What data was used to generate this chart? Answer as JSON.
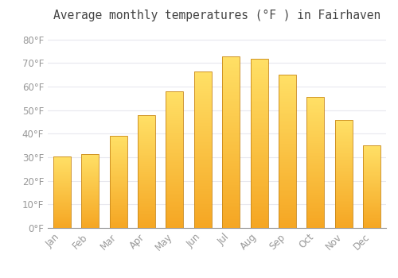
{
  "title": "Average monthly temperatures (°F ) in Fairhaven",
  "months": [
    "Jan",
    "Feb",
    "Mar",
    "Apr",
    "May",
    "Jun",
    "Jul",
    "Aug",
    "Sep",
    "Oct",
    "Nov",
    "Dec"
  ],
  "values": [
    30.5,
    31.5,
    39.0,
    48.0,
    58.0,
    66.5,
    73.0,
    72.0,
    65.0,
    55.5,
    46.0,
    35.0
  ],
  "bar_color_bottom": "#F5A623",
  "bar_color_top": "#FFE066",
  "bar_edge_color": "#C8871A",
  "background_color": "#FFFFFF",
  "grid_color": "#E8E8EE",
  "title_color": "#444444",
  "tick_color": "#999999",
  "ylim": [
    0,
    85
  ],
  "yticks": [
    0,
    10,
    20,
    30,
    40,
    50,
    60,
    70,
    80
  ],
  "title_fontsize": 10.5,
  "tick_fontsize": 8.5
}
